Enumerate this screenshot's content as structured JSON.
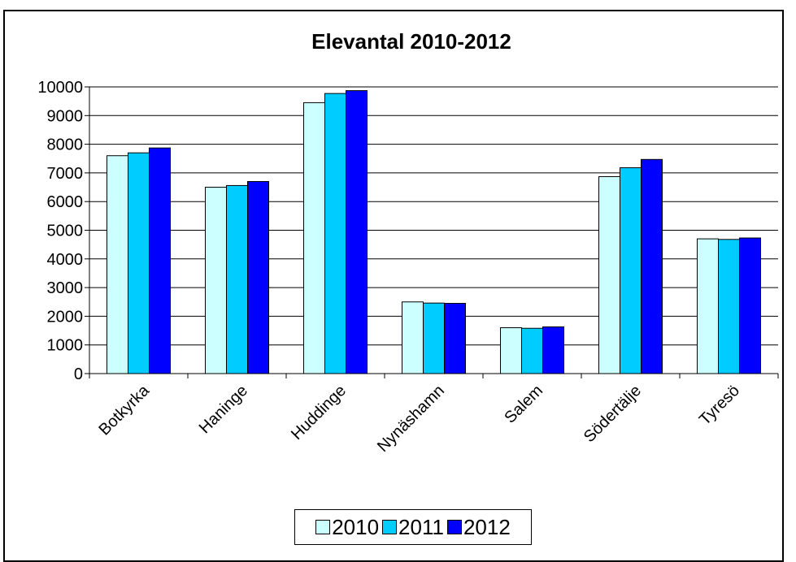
{
  "chart_data": {
    "type": "bar",
    "title": "Elevantal 2010-2012",
    "categories": [
      "Botkyrka",
      "Haninge",
      "Huddinge",
      "Nynäshamn",
      "Salem",
      "Södertälje",
      "Tyresö"
    ],
    "series": [
      {
        "name": "2010",
        "color": "#ccffff",
        "values": [
          7600,
          6500,
          9450,
          2500,
          1600,
          6870,
          4700
        ]
      },
      {
        "name": "2011",
        "color": "#00ccff",
        "values": [
          7700,
          6560,
          9770,
          2460,
          1580,
          7180,
          4680
        ]
      },
      {
        "name": "2012",
        "color": "#0000ff",
        "values": [
          7870,
          6700,
          9870,
          2450,
          1630,
          7470,
          4730
        ]
      }
    ],
    "ylim": [
      0,
      10000
    ],
    "yticks": [
      0,
      1000,
      2000,
      3000,
      4000,
      5000,
      6000,
      7000,
      8000,
      9000,
      10000
    ],
    "grid": true,
    "legend_position": "bottom",
    "xlabel": "",
    "ylabel": ""
  }
}
